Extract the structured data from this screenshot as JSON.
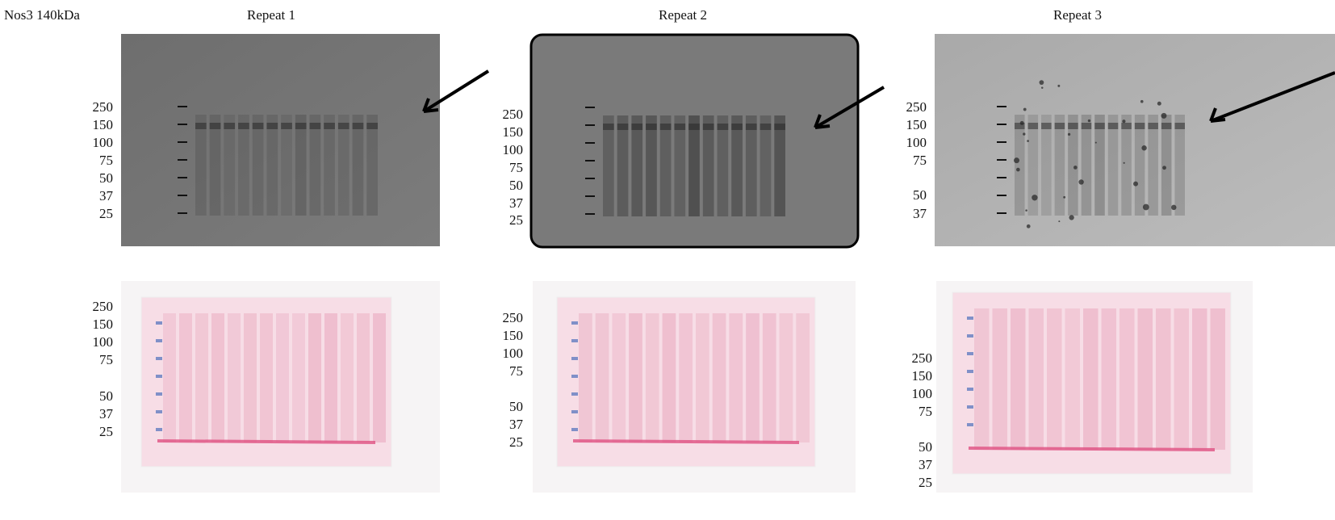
{
  "title": "Nos3 140kDa",
  "panels": [
    {
      "title": "Repeat 1",
      "blot_markers": [
        250,
        150,
        100,
        75,
        50,
        37,
        25
      ],
      "stain_markers": [
        250,
        150,
        100,
        75,
        50,
        37,
        25
      ]
    },
    {
      "title": "Repeat 2",
      "blot_markers": [
        250,
        150,
        100,
        75,
        50,
        37,
        25
      ],
      "stain_markers": [
        250,
        150,
        100,
        75,
        50,
        37,
        25
      ]
    },
    {
      "title": "Repeat 3",
      "blot_markers": [
        250,
        150,
        100,
        75,
        50,
        37
      ],
      "stain_markers": [
        250,
        150,
        100,
        75,
        50,
        37,
        25
      ]
    }
  ]
}
